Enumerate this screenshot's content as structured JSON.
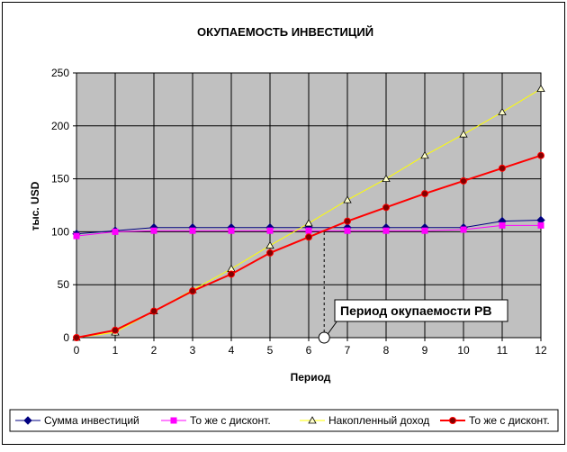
{
  "chart_data": {
    "type": "line",
    "title": "ОКУПАЕМОСТЬ ИНВЕСТИЦИЙ",
    "xlabel": "Период",
    "ylabel": "тыс. USD",
    "x": [
      0,
      1,
      2,
      3,
      4,
      5,
      6,
      7,
      8,
      9,
      10,
      11,
      12
    ],
    "xlim": [
      0,
      12
    ],
    "ylim": [
      0,
      250
    ],
    "yticks": [
      0,
      50,
      100,
      150,
      200,
      250
    ],
    "grid": true,
    "legend_position": "bottom",
    "series": [
      {
        "name": "Сумма инвестиций",
        "color": "#000080",
        "marker": "diamond",
        "values": [
          98,
          101,
          104,
          104,
          104,
          104,
          104,
          104,
          104,
          104,
          104,
          110,
          111
        ]
      },
      {
        "name": "То же с дисконт.",
        "color": "#ff00ff",
        "marker": "square",
        "values": [
          96,
          100,
          101,
          101,
          101,
          101,
          101,
          101,
          101,
          101,
          102,
          106,
          106
        ]
      },
      {
        "name": "Накопленный доход",
        "color": "#ffff00",
        "marker": "triangle",
        "values": [
          0,
          5,
          25,
          45,
          65,
          87,
          108,
          130,
          150,
          172,
          192,
          213,
          235
        ]
      },
      {
        "name": "То же с дисконт.",
        "color": "#ff0000",
        "marker": "circle",
        "values": [
          0,
          7,
          25,
          44,
          60,
          80,
          95,
          110,
          123,
          136,
          148,
          160,
          172
        ]
      }
    ],
    "annotations": [
      {
        "text": "Период окупаемости PB",
        "x": 6.4,
        "y": 0
      }
    ]
  },
  "colors": {
    "plot_background": "#c0c0c0",
    "grid": "#000000"
  }
}
